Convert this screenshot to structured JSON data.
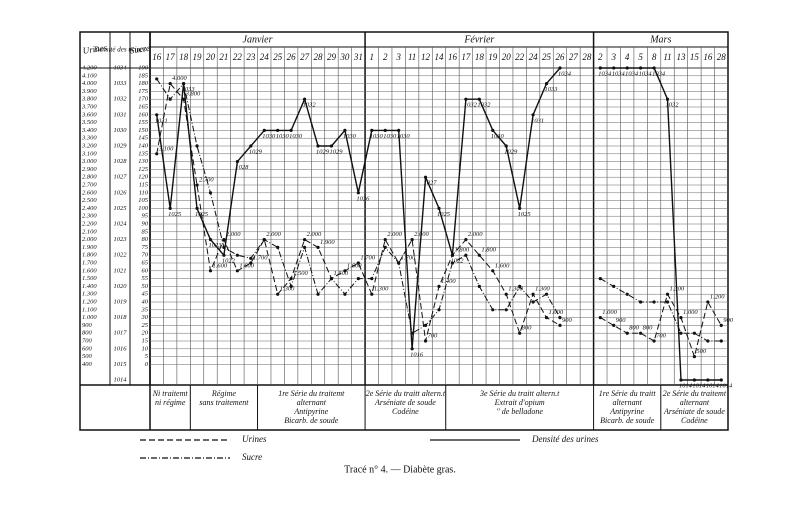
{
  "chart_data": {
    "type": "line",
    "caption": "Tracé n° 4. — Diabète gras.",
    "axis_titles": {
      "y2": "Urines",
      "y3": "Densité des urines",
      "y": "Sucre"
    },
    "months": [
      {
        "label": "Janvier",
        "categories": [
          "16",
          "17",
          "18",
          "19",
          "20",
          "21",
          "22",
          "23",
          "24",
          "25",
          "26",
          "27",
          "28",
          "29",
          "30",
          "31"
        ]
      },
      {
        "label": "Février",
        "categories": [
          "1",
          "2",
          "3",
          "11",
          "12",
          "14",
          "16",
          "17",
          "18",
          "19",
          "20",
          "22",
          "24",
          "25",
          "26",
          "27",
          "28"
        ]
      },
      {
        "label": "Mars",
        "categories": [
          "2",
          "3",
          "4",
          "5",
          "8",
          "11",
          "13",
          "15",
          "16",
          "28"
        ]
      }
    ],
    "ylim": [
      -10,
      190
    ],
    "yticks": [
      0,
      5,
      10,
      15,
      20,
      25,
      30,
      35,
      40,
      45,
      50,
      55,
      60,
      65,
      70,
      75,
      80,
      85,
      90,
      95,
      100,
      105,
      110,
      115,
      120,
      125,
      130,
      135,
      140,
      145,
      150,
      155,
      160,
      165,
      170,
      175,
      180,
      185,
      190
    ],
    "y2lim": [
      200,
      4200
    ],
    "y2ticks": [
      400,
      500,
      600,
      700,
      800,
      900,
      {
        "value": 1000,
        "label": "1.000"
      },
      {
        "value": 1100,
        "label": "1.100"
      },
      {
        "value": 1200,
        "label": "1.200"
      },
      {
        "value": 1300,
        "label": "1.300"
      },
      {
        "value": 1400,
        "label": "1.400"
      },
      {
        "value": 1500,
        "label": "1.500"
      },
      {
        "value": 1600,
        "label": "1.600"
      },
      {
        "value": 1700,
        "label": "1.700"
      },
      {
        "value": 1800,
        "label": "1.800"
      },
      {
        "value": 1900,
        "label": "1.900"
      },
      {
        "value": 2000,
        "label": "2.000"
      },
      {
        "value": 2100,
        "label": "2.100"
      },
      {
        "value": 2200,
        "label": "2.200"
      },
      {
        "value": 2300,
        "label": "2.300"
      },
      {
        "value": 2400,
        "label": "2.400"
      },
      {
        "value": 2500,
        "label": "2.500"
      },
      {
        "value": 2600,
        "label": "2.600"
      },
      {
        "value": 2700,
        "label": "2.700"
      },
      {
        "value": 2800,
        "label": "2.800"
      },
      {
        "value": 2900,
        "label": "2.900"
      },
      {
        "value": 3000,
        "label": "3.000"
      },
      {
        "value": 3100,
        "label": "3.100"
      },
      {
        "value": 3200,
        "label": "3.200"
      },
      {
        "value": 3300,
        "label": "3.300"
      },
      {
        "value": 3400,
        "label": "3.400"
      },
      {
        "value": 3500,
        "label": "3.500"
      },
      {
        "value": 3600,
        "label": "3.600"
      },
      {
        "value": 3700,
        "label": "3.700"
      },
      {
        "value": 3800,
        "label": "3.800"
      },
      {
        "value": 3900,
        "label": "3.900"
      },
      {
        "value": 4000,
        "label": "4.000"
      },
      {
        "value": 4100,
        "label": "4.100"
      },
      {
        "value": 4200,
        "label": "4.200"
      }
    ],
    "y3lim": [
      1014,
      1034
    ],
    "y3ticks": [
      1014,
      1015,
      1016,
      1017,
      1018,
      1019,
      1020,
      1021,
      1022,
      1023,
      1024,
      1025,
      1026,
      1027,
      1028,
      1029,
      1030,
      1031,
      1032,
      1033,
      1034
    ],
    "series": [
      {
        "name": "Urines",
        "axis": "y2",
        "dash": "6,3",
        "values": [
          3100,
          4000,
          3800,
          2700,
          1600,
          2000,
          1600,
          1700,
          2000,
          1300,
          1500,
          2000,
          1900,
          1500,
          1600,
          1700,
          1300,
          2000,
          1700,
          2000,
          700,
          1400,
          1800,
          2000,
          1800,
          1600,
          1300,
          800,
          1300,
          1000,
          900,
          null,
          null,
          1000,
          900,
          800,
          800,
          700,
          1300,
          1000,
          500,
          1200,
          900
        ],
        "value_labels": [
          "3.100",
          "4.000",
          "3.800",
          "2.700",
          "1.600",
          "2.000",
          "1.600",
          "1.700",
          "2.000",
          "1.300",
          "1.500",
          "2.000",
          "1.900",
          "1.500",
          "1.600",
          "1.700",
          "1.300",
          "2.000",
          "1.700",
          "2.000",
          "700",
          "1.400",
          "1.800",
          "2.000",
          "1.800",
          "1.600",
          "1.300",
          "800",
          "1.300",
          "1.000",
          "900",
          null,
          null,
          "1.000",
          "900",
          "800",
          "800",
          "700",
          "1.300",
          "1.000",
          "500",
          "1.200",
          "900"
        ]
      },
      {
        "name": "Densité des urines",
        "axis": "y3",
        "dash": "",
        "values": [
          1031,
          1025,
          1033,
          1025,
          1023,
          1022,
          1028,
          1029,
          1030,
          1030,
          1030,
          1032,
          1029,
          1029,
          1030,
          1026,
          1030,
          1030,
          1030,
          1016,
          1027,
          1025,
          1022,
          1032,
          1032,
          1030,
          1029,
          1025,
          1031,
          1033,
          1034,
          null,
          null,
          1034,
          1034,
          1034,
          1034,
          1034,
          1032,
          1014,
          1014,
          1014,
          1014
        ]
      },
      {
        "name": "Sucre",
        "axis": "y",
        "dash": "6,2,1,2",
        "values": [
          183,
          170,
          180,
          140,
          110,
          75,
          70,
          68,
          80,
          75,
          50,
          75,
          45,
          55,
          45,
          55,
          55,
          75,
          65,
          20,
          25,
          35,
          65,
          70,
          50,
          35,
          35,
          50,
          40,
          45,
          30,
          null,
          null,
          55,
          50,
          45,
          40,
          40,
          40,
          20,
          20,
          15,
          15
        ]
      }
    ],
    "phases": [
      {
        "span": 3,
        "lines": [
          "Ni traitemt",
          "ni régime"
        ]
      },
      {
        "span": 5,
        "lines": [
          "Régime",
          "sans traitement"
        ]
      },
      {
        "span": 8,
        "lines": [
          "1re Série du traitemt",
          "alternant",
          "Antipyrine",
          "Bicarb. de soude"
        ]
      },
      {
        "span": 6,
        "lines": [
          "2e Série du traitt altern.t",
          "Arséniate de soude",
          "Codéine"
        ]
      },
      {
        "span": 11,
        "lines": [
          "3e Série du traitt altern.t",
          "Extrait d'opium",
          "\"  de belladone"
        ]
      },
      {
        "span": 5,
        "lines": [
          "1re Série du traitt",
          "alternant",
          "Antipyrine",
          "Bicarb. de soude"
        ]
      },
      {
        "span": 5,
        "lines": [
          "2e Série du traitemt",
          "alternant",
          "Arséniate de soude",
          "Codéine"
        ]
      }
    ]
  }
}
